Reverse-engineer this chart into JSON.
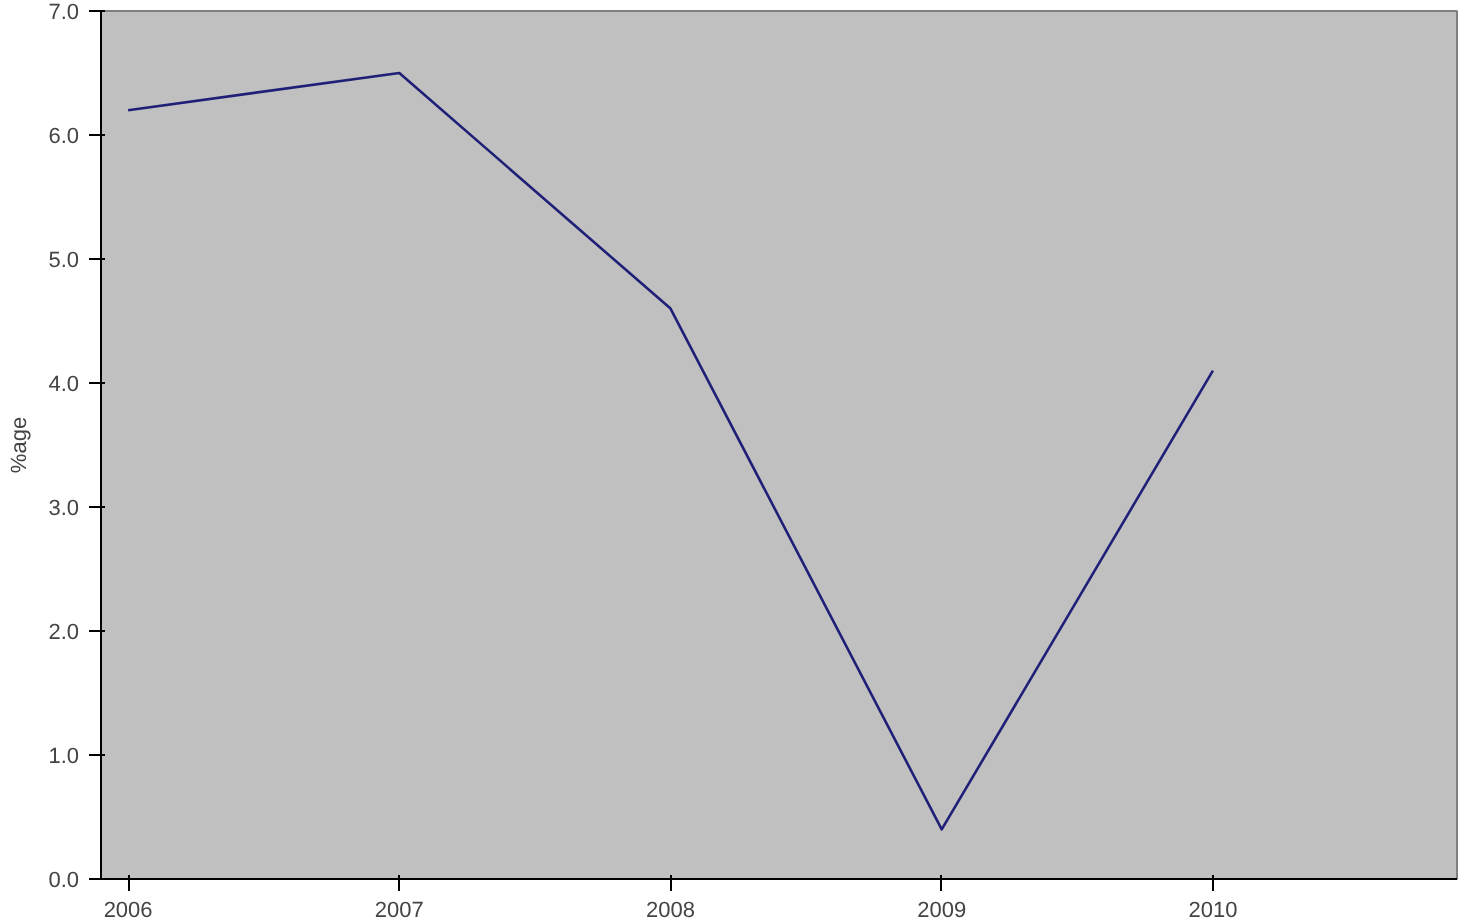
{
  "chart_data": {
    "type": "line",
    "ylabel": "%age",
    "categories": [
      "2006",
      "2007",
      "2008",
      "2009",
      "2010"
    ],
    "series": [
      {
        "color": "#1f1f78",
        "values": [
          6.2,
          6.5,
          4.6,
          0.4,
          4.1
        ]
      }
    ],
    "ylim": [
      0,
      7
    ],
    "yticks": [
      {
        "value": 0,
        "label": "0.0"
      },
      {
        "value": 1,
        "label": "1.0"
      },
      {
        "value": 2,
        "label": "2.0"
      },
      {
        "value": 3,
        "label": "3.0"
      },
      {
        "value": 4,
        "label": "4.0"
      },
      {
        "value": 5,
        "label": "5.0"
      },
      {
        "value": 6,
        "label": "6.0"
      },
      {
        "value": 7,
        "label": "7.0"
      }
    ],
    "marker": "none",
    "line_style": "solid"
  }
}
